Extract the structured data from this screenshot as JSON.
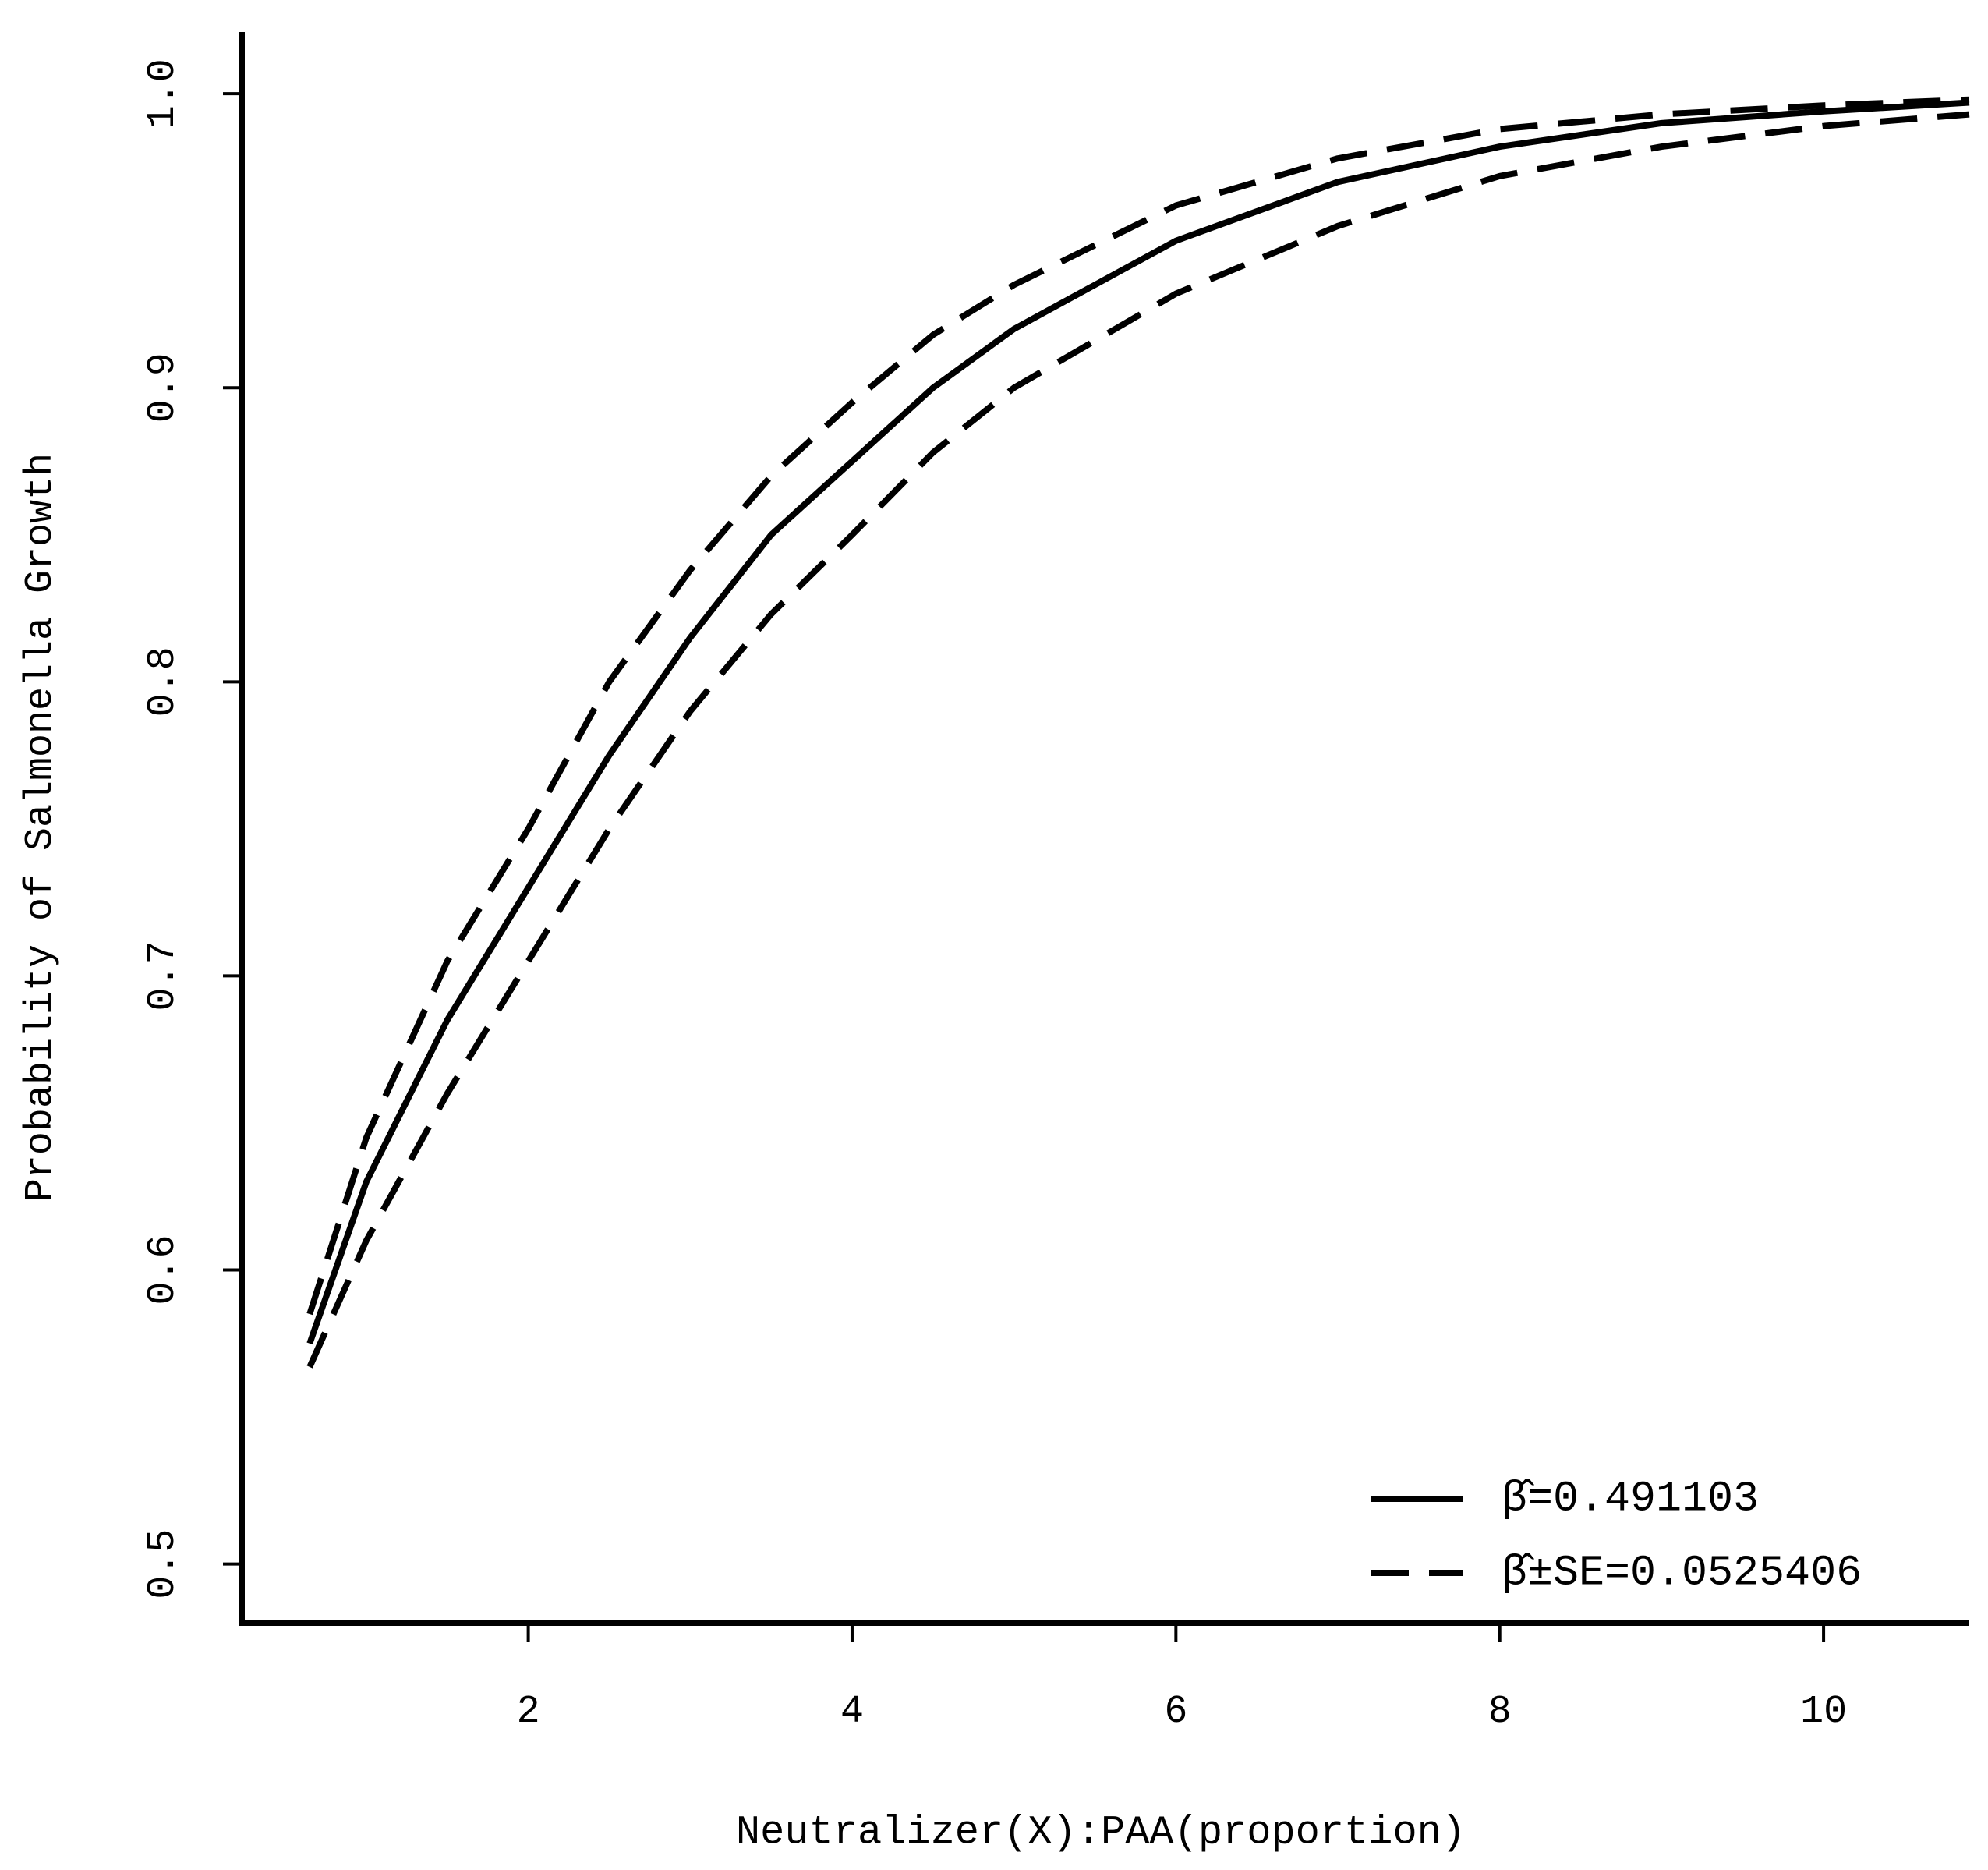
{
  "chart_data": {
    "type": "line",
    "x_label": "Neutralizer(X):PAA(proportion)",
    "y_label": "Probability of Salmonella Growth",
    "xlim": [
      0.23,
      10.9
    ],
    "ylim": [
      0.48,
      1.021
    ],
    "xticks": [
      2,
      4,
      6,
      8,
      10
    ],
    "yticks": [
      0.5,
      0.6,
      0.7,
      0.8,
      0.9,
      {
        "value": 1.0,
        "label": "1.0"
      }
    ],
    "legend": "bottom-right",
    "series": [
      {
        "name": "β̂=0.491103",
        "color": "#000000",
        "linestyle": "solid",
        "x": [
          0.65,
          1,
          1.5,
          2,
          2.5,
          3,
          3.5,
          4,
          4.5,
          5,
          6,
          7,
          8,
          9,
          10,
          10.9
        ],
        "values": [
          0.575,
          0.63,
          0.685,
          0.73,
          0.775,
          0.815,
          0.85,
          0.875,
          0.9,
          0.92,
          0.95,
          0.97,
          0.982,
          0.99,
          0.994,
          0.997
        ]
      },
      {
        "name": "β̂±SE=0.0525406",
        "color": "#000000",
        "linestyle": "dashed",
        "x": [
          0.65,
          1,
          1.5,
          2,
          2.5,
          3,
          3.5,
          4,
          4.5,
          5,
          6,
          7,
          8,
          9,
          10,
          10.9
        ],
        "values": [
          0.585,
          0.645,
          0.705,
          0.75,
          0.8,
          0.838,
          0.87,
          0.895,
          0.918,
          0.935,
          0.962,
          0.978,
          0.988,
          0.993,
          0.996,
          0.998
        ]
      },
      {
        "color": "#000000",
        "linestyle": "dashed",
        "x": [
          0.65,
          1,
          1.5,
          2,
          2.5,
          3,
          3.5,
          4,
          4.5,
          5,
          6,
          7,
          8,
          9,
          10,
          10.9
        ],
        "values": [
          0.567,
          0.61,
          0.66,
          0.705,
          0.75,
          0.79,
          0.823,
          0.85,
          0.878,
          0.9,
          0.932,
          0.955,
          0.972,
          0.982,
          0.989,
          0.993
        ]
      }
    ]
  }
}
